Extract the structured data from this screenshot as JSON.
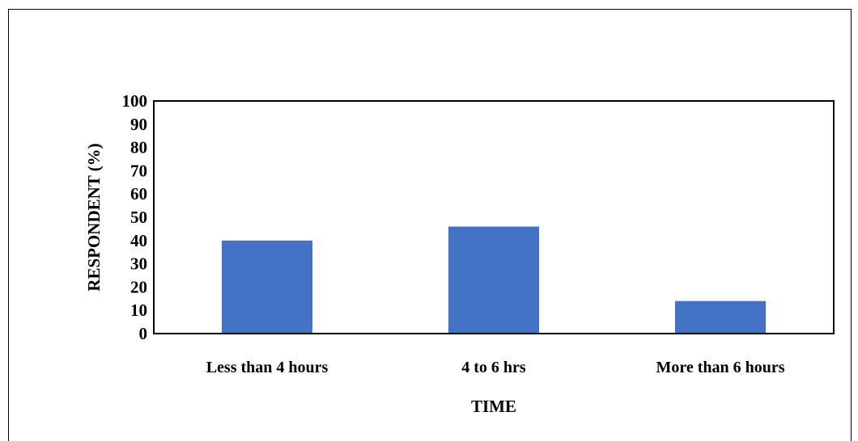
{
  "chart_data": {
    "type": "bar",
    "categories": [
      "Less than 4 hours",
      "4 to 6 hrs",
      "More than 6 hours"
    ],
    "values": [
      40,
      46,
      14
    ],
    "xlabel": "TIME",
    "ylabel": "RESPONDENT (%)",
    "ylim": [
      0,
      100
    ],
    "yticks": [
      0,
      10,
      20,
      30,
      40,
      50,
      60,
      70,
      80,
      90,
      100
    ],
    "grid": false,
    "legend": "none",
    "bar_color": "#4472C4"
  }
}
